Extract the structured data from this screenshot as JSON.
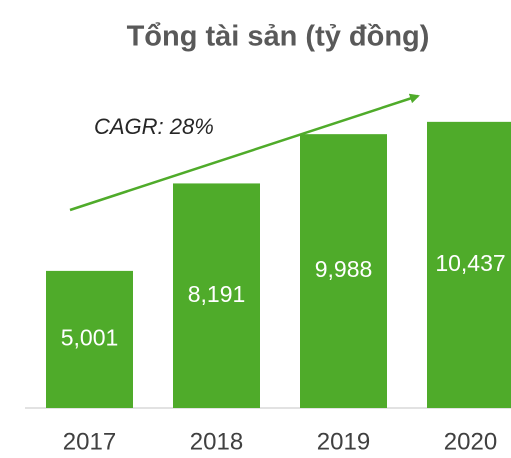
{
  "chart_data": {
    "type": "bar",
    "title": "Tổng tài sản (tỷ đồng)",
    "categories": [
      "2017",
      "2018",
      "2019",
      "2020"
    ],
    "values": [
      5001,
      8191,
      9988,
      10437
    ],
    "value_labels": [
      "5,001",
      "8,191",
      "9,988",
      "10,437"
    ],
    "color": "#4fab2a",
    "annotation": "CAGR: 28%",
    "ylim": [
      0,
      12000
    ]
  }
}
